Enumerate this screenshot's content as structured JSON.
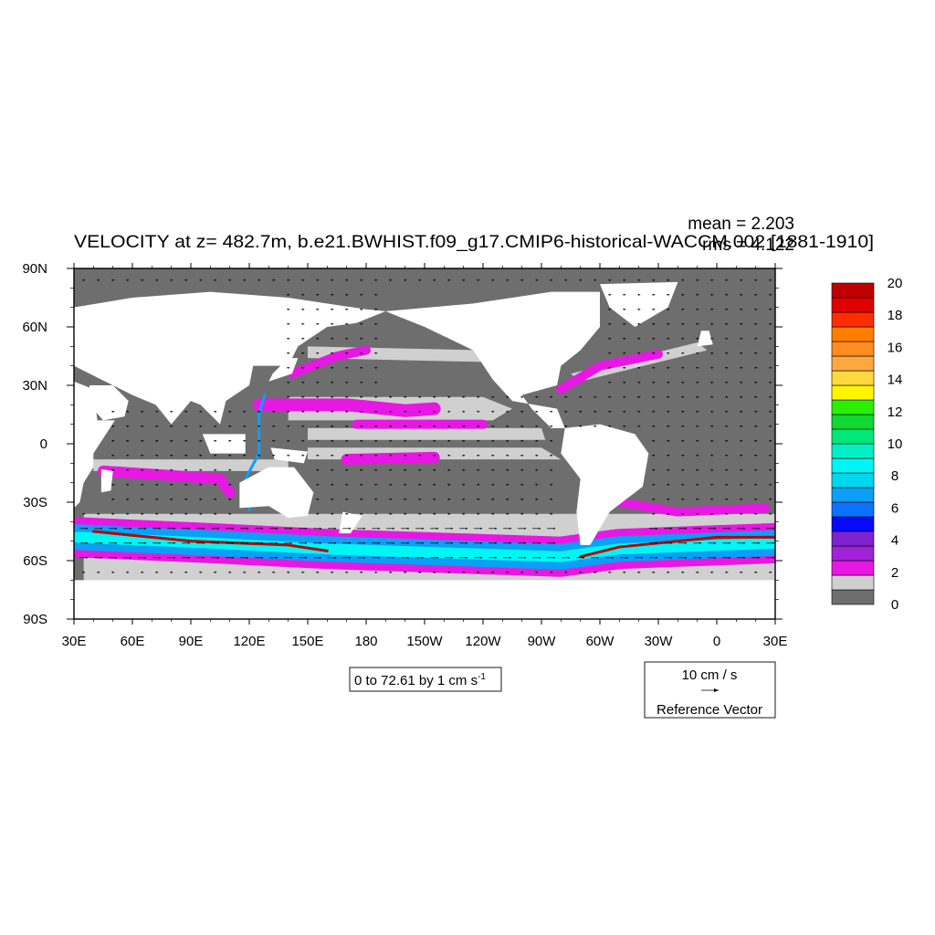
{
  "chart_data": {
    "type": "heatmap",
    "title": "VELOCITY at z= 482.7m, b.e21.BWHIST.f09_g17.CMIP6-historical-WACCM.002 [1881-1910]",
    "stats": {
      "mean": "mean = 2.203",
      "rms": "rms = 4.122"
    },
    "x_ticks": [
      "30E",
      "60E",
      "90E",
      "120E",
      "150E",
      "180",
      "150W",
      "120W",
      "90W",
      "60W",
      "30W",
      "0",
      "30E"
    ],
    "y_ticks": [
      "90N",
      "60N",
      "30N",
      "0",
      "30S",
      "60S",
      "90S"
    ],
    "xlim": [
      30,
      390
    ],
    "ylim": [
      -90,
      90
    ],
    "contour_info": {
      "text": "0 to 72.61 by 1 cm s",
      "superscript": "-1"
    },
    "reference_vector": {
      "magnitude": "10 cm / s",
      "label": "Reference Vector"
    },
    "colorbar": {
      "labels": [
        "0",
        "2",
        "4",
        "6",
        "8",
        "10",
        "12",
        "14",
        "16",
        "18",
        "20"
      ],
      "colors": [
        "#6e6e6e",
        "#d0d0d0",
        "#e718e3",
        "#a123d8",
        "#7c22cf",
        "#0808ff",
        "#0b73ff",
        "#0b9ff6",
        "#00d6ee",
        "#00f6f5",
        "#00f0c5",
        "#00e87a",
        "#10d830",
        "#2df000",
        "#fff500",
        "#ffd840",
        "#ffa840",
        "#ff8c20",
        "#ff8000",
        "#ff2d00",
        "#e00000",
        "#c00000"
      ]
    },
    "colors": {
      "land": "#ffffff",
      "weak_flow": "#6e6e6e",
      "moderate_flow": "#d0d0d0",
      "jet": "#e718e3",
      "strong_jet": "#0b9ff6",
      "core": "#00f6f5",
      "peak": "#c00000"
    }
  }
}
